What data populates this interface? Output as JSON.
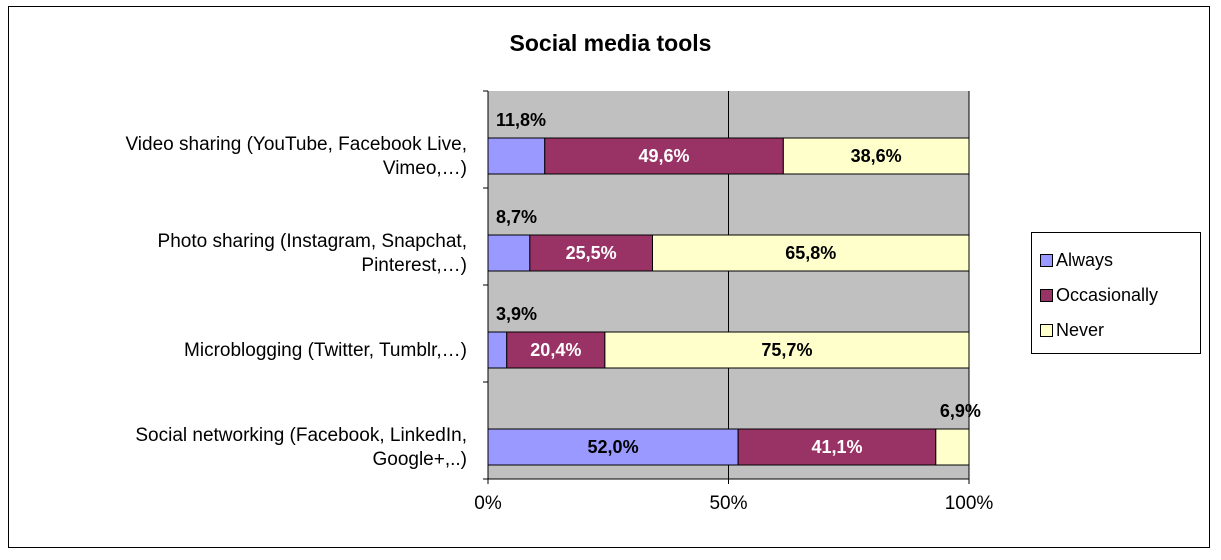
{
  "chart_data": {
    "type": "bar",
    "orientation": "horizontal",
    "stacked": "percent",
    "title": "Social media tools",
    "categories": [
      [
        "Video sharing (YouTube, Facebook Live,",
        "Vimeo,…)"
      ],
      [
        "Photo sharing (Instagram, Snapchat,",
        "Pinterest,…)"
      ],
      [
        "Microblogging (Twitter, Tumblr,…)"
      ],
      [
        "Social networking (Facebook, LinkedIn,",
        "Google+,..)"
      ]
    ],
    "series": [
      {
        "name": "Always",
        "color": "#9999ff",
        "values": [
          11.8,
          8.7,
          3.9,
          52.0
        ],
        "labels": [
          "11,8%",
          "8,7%",
          "3,9%",
          "52,0%"
        ]
      },
      {
        "name": "Occasionally",
        "color": "#993366",
        "values": [
          49.6,
          25.5,
          20.4,
          41.1
        ],
        "labels": [
          "49,6%",
          "25,5%",
          "20,4%",
          "41,1%"
        ]
      },
      {
        "name": "Never",
        "color": "#ffffcc",
        "values": [
          38.6,
          65.8,
          75.7,
          6.9
        ],
        "labels": [
          "38,6%",
          "65,8%",
          "75,7%",
          "6,9%"
        ]
      }
    ],
    "xticks": [
      "0%",
      "50%",
      "100%"
    ],
    "xlim": [
      0,
      100
    ],
    "plot_background": "#c0c0c0",
    "grid": true,
    "legend_position": "right"
  }
}
